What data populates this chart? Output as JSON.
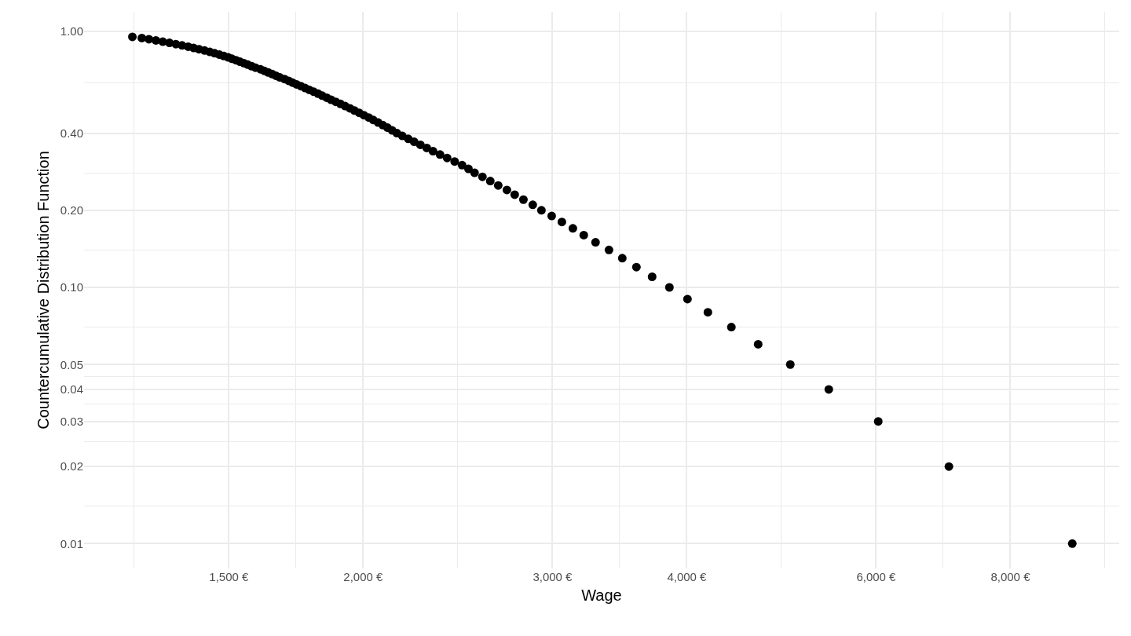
{
  "chart_data": {
    "type": "scatter",
    "xlabel": "Wage",
    "ylabel": "Countercumulative Distribution Function",
    "x": [
      1220,
      1245,
      1264,
      1283,
      1302,
      1321,
      1339,
      1357,
      1375,
      1391,
      1407,
      1424,
      1440,
      1455,
      1470,
      1484,
      1498,
      1510,
      1523,
      1536,
      1549,
      1562,
      1575,
      1588,
      1605,
      1618,
      1632,
      1646,
      1659,
      1673,
      1690,
      1705,
      1719,
      1734,
      1750,
      1766,
      1782,
      1799,
      1816,
      1832,
      1850,
      1867,
      1886,
      1905,
      1924,
      1944,
      1963,
      1983,
      2003,
      2024,
      2044,
      2065,
      2086,
      2107,
      2128,
      2150,
      2175,
      2203,
      2231,
      2261,
      2292,
      2323,
      2358,
      2394,
      2433,
      2472,
      2506,
      2539,
      2582,
      2626,
      2671,
      2721,
      2767,
      2819,
      2876,
      2930,
      2995,
      3061,
      3134,
      3208,
      3290,
      3386,
      3484,
      3591,
      3714,
      3854,
      4006,
      4185,
      4401,
      4661,
      4993,
      5422,
      6028,
      7013,
      9134
    ],
    "series": [
      {
        "color": "#000000",
        "values": [
          0.95,
          0.94,
          0.93,
          0.92,
          0.91,
          0.9,
          0.89,
          0.88,
          0.87,
          0.86,
          0.85,
          0.84,
          0.83,
          0.82,
          0.81,
          0.8,
          0.79,
          0.78,
          0.77,
          0.76,
          0.75,
          0.74,
          0.73,
          0.72,
          0.71,
          0.7,
          0.69,
          0.68,
          0.67,
          0.66,
          0.65,
          0.64,
          0.63,
          0.62,
          0.61,
          0.6,
          0.59,
          0.58,
          0.57,
          0.56,
          0.55,
          0.54,
          0.53,
          0.52,
          0.51,
          0.5,
          0.49,
          0.48,
          0.47,
          0.46,
          0.45,
          0.44,
          0.43,
          0.42,
          0.41,
          0.4,
          0.39,
          0.38,
          0.37,
          0.36,
          0.35,
          0.34,
          0.33,
          0.32,
          0.31,
          0.3,
          0.29,
          0.28,
          0.27,
          0.26,
          0.25,
          0.24,
          0.23,
          0.22,
          0.21,
          0.2,
          0.19,
          0.18,
          0.17,
          0.16,
          0.15,
          0.14,
          0.13,
          0.12,
          0.11,
          0.1,
          0.09,
          0.08,
          0.07,
          0.06,
          0.05,
          0.04,
          0.03,
          0.02,
          0.01
        ]
      }
    ],
    "log": "xy",
    "xlim": [
      1100,
      10100
    ],
    "ylim": [
      0.008,
      1.19
    ],
    "xticks": [
      {
        "value": 1225,
        "label": null
      },
      {
        "value": 1500,
        "label": "1,500 €"
      },
      {
        "value": 1732,
        "label": null
      },
      {
        "value": 2000,
        "label": "2,000 €"
      },
      {
        "value": 2449,
        "label": null
      },
      {
        "value": 3000,
        "label": "3,000 €"
      },
      {
        "value": 3464,
        "label": null
      },
      {
        "value": 4000,
        "label": "4,000 €"
      },
      {
        "value": 4899,
        "label": null
      },
      {
        "value": 6000,
        "label": "6,000 €"
      },
      {
        "value": 6928,
        "label": null
      },
      {
        "value": 8000,
        "label": "8,000 €"
      },
      {
        "value": 9798,
        "label": null
      }
    ],
    "yticks": [
      {
        "value": 0.01,
        "label": "0.01"
      },
      {
        "value": 0.014,
        "label": null
      },
      {
        "value": 0.02,
        "label": "0.02"
      },
      {
        "value": 0.025,
        "label": null
      },
      {
        "value": 0.03,
        "label": "0.03"
      },
      {
        "value": 0.035,
        "label": null
      },
      {
        "value": 0.04,
        "label": "0.04"
      },
      {
        "value": 0.045,
        "label": null
      },
      {
        "value": 0.05,
        "label": "0.05"
      },
      {
        "value": 0.07,
        "label": null
      },
      {
        "value": 0.1,
        "label": "0.10"
      },
      {
        "value": 0.14,
        "label": null
      },
      {
        "value": 0.2,
        "label": "0.20"
      },
      {
        "value": 0.28,
        "label": null
      },
      {
        "value": 0.4,
        "label": "0.40"
      },
      {
        "value": 0.63,
        "label": null
      },
      {
        "value": 1,
        "label": "1.00"
      }
    ],
    "grid": true,
    "marker": "circle"
  }
}
